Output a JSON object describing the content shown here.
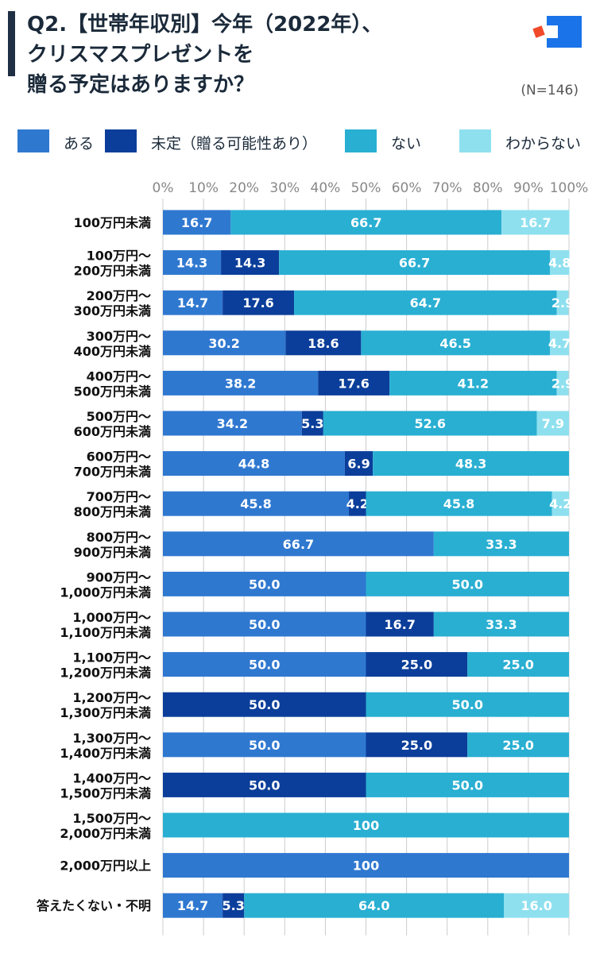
{
  "header": {
    "title_lines": [
      "Q2.【世帯年収別】今年（2022年）、",
      "クリスマスプレゼントを",
      "贈る予定はありますか？"
    ],
    "sample_size": "(N=146)"
  },
  "logo": {
    "name": "brand-logo-icon",
    "colors": [
      "#f04a2a",
      "#1a73e8"
    ]
  },
  "colors": {
    "aru": "#2f78d0",
    "mitei": "#0b3e9a",
    "nai": "#29afd2",
    "wakaranai": "#8fe0ef",
    "axis_text": "#888888",
    "grid": "#cccccc"
  },
  "chart_data": {
    "type": "bar",
    "orientation": "horizontal",
    "stacked": true,
    "title": "Q2.【世帯年収別】今年（2022年）、クリスマスプレゼントを贈る予定はありますか？",
    "xlabel": "",
    "ylabel": "",
    "xlim": [
      0,
      100
    ],
    "x_ticks": [
      "0%",
      "10%",
      "20%",
      "30%",
      "40%",
      "50%",
      "60%",
      "70%",
      "80%",
      "90%",
      "100%"
    ],
    "legend": [
      "ある",
      "未定（贈る可能性あり）",
      "ない",
      "わからない"
    ],
    "legend_position": "top",
    "categories": [
      "100万円未満",
      "100万円〜\n200万円未満",
      "200万円〜\n300万円未満",
      "300万円〜\n400万円未満",
      "400万円〜\n500万円未満",
      "500万円〜\n600万円未満",
      "600万円〜\n700万円未満",
      "700万円〜\n800万円未満",
      "800万円〜\n900万円未満",
      "900万円〜\n1,000万円未満",
      "1,000万円〜\n1,100万円未満",
      "1,100万円〜\n1,200万円未満",
      "1,200万円〜\n1,300万円未満",
      "1,300万円〜\n1,400万円未満",
      "1,400万円〜\n1,500万円未満",
      "1,500万円〜\n2,000万円未満",
      "2,000万円以上",
      "答えたくない・不明"
    ],
    "series": [
      {
        "name": "ある",
        "color_key": "aru",
        "values": [
          16.7,
          14.3,
          14.7,
          30.2,
          38.2,
          34.2,
          44.8,
          45.8,
          66.7,
          50.0,
          50.0,
          50.0,
          0,
          50.0,
          0,
          0,
          100,
          14.7
        ]
      },
      {
        "name": "未定（贈る可能性あり）",
        "color_key": "mitei",
        "values": [
          0,
          14.3,
          17.6,
          18.6,
          17.6,
          5.3,
          6.9,
          4.2,
          0,
          0,
          16.7,
          25.0,
          50.0,
          25.0,
          50.0,
          0,
          0,
          5.3
        ]
      },
      {
        "name": "ない",
        "color_key": "nai",
        "values": [
          66.7,
          66.7,
          64.7,
          46.5,
          41.2,
          52.6,
          48.3,
          45.8,
          33.3,
          50.0,
          33.3,
          25.0,
          50.0,
          25.0,
          50.0,
          100,
          0,
          64.0
        ]
      },
      {
        "name": "わからない",
        "color_key": "wakaranai",
        "values": [
          16.7,
          4.8,
          2.9,
          4.7,
          2.9,
          7.9,
          0,
          4.2,
          0,
          0,
          0,
          0,
          0,
          0,
          0,
          0,
          0,
          16.0
        ]
      }
    ],
    "value_labels": [
      [
        "16.7",
        "",
        "66.7",
        "16.7"
      ],
      [
        "14.3",
        "14.3",
        "66.7",
        "4.8"
      ],
      [
        "14.7",
        "17.6",
        "64.7",
        "2.9"
      ],
      [
        "30.2",
        "18.6",
        "46.5",
        "4.7"
      ],
      [
        "38.2",
        "17.6",
        "41.2",
        "2.9"
      ],
      [
        "34.2",
        "5.3",
        "52.6",
        "7.9"
      ],
      [
        "44.8",
        "6.9",
        "48.3",
        ""
      ],
      [
        "45.8",
        "4.2",
        "45.8",
        "4.2"
      ],
      [
        "66.7",
        "",
        "33.3",
        ""
      ],
      [
        "50.0",
        "",
        "50.0",
        ""
      ],
      [
        "50.0",
        "16.7",
        "33.3",
        ""
      ],
      [
        "50.0",
        "25.0",
        "25.0",
        ""
      ],
      [
        "",
        "50.0",
        "50.0",
        ""
      ],
      [
        "50.0",
        "25.0",
        "25.0",
        ""
      ],
      [
        "",
        "50.0",
        "50.0",
        ""
      ],
      [
        "",
        "",
        "100",
        ""
      ],
      [
        "100",
        "",
        "",
        ""
      ],
      [
        "14.7",
        "5.3",
        "64.0",
        "16.0"
      ]
    ]
  }
}
